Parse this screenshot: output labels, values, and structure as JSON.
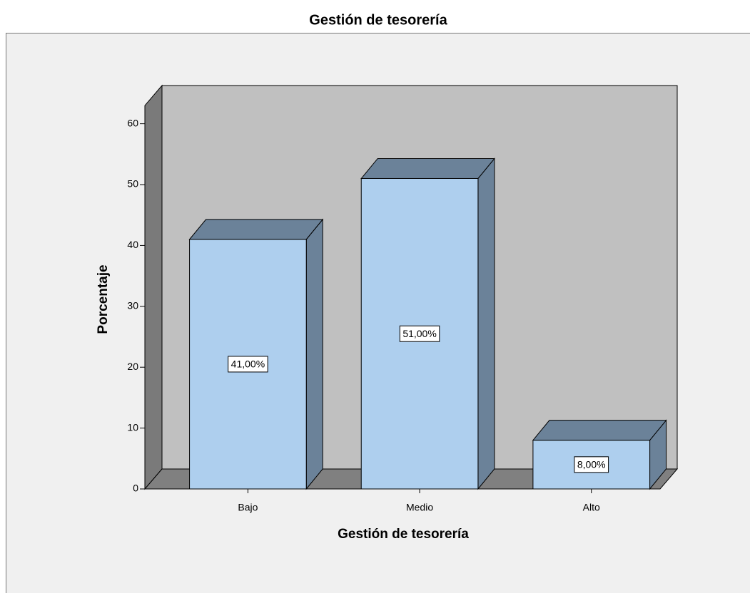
{
  "chart_data": {
    "type": "bar3d",
    "title": "Gestión de tesorería",
    "x_label": "Gestión de tesorería",
    "y_label": "Porcentaje",
    "categories": [
      "Bajo",
      "Medio",
      "Alto"
    ],
    "values": [
      41,
      51,
      8
    ],
    "value_labels": [
      "41,00%",
      "51,00%",
      "8,00%"
    ],
    "color": "#aecfee",
    "ylim": [
      0,
      63
    ],
    "yticks": [
      0,
      10,
      20,
      30,
      40,
      50,
      60
    ]
  }
}
